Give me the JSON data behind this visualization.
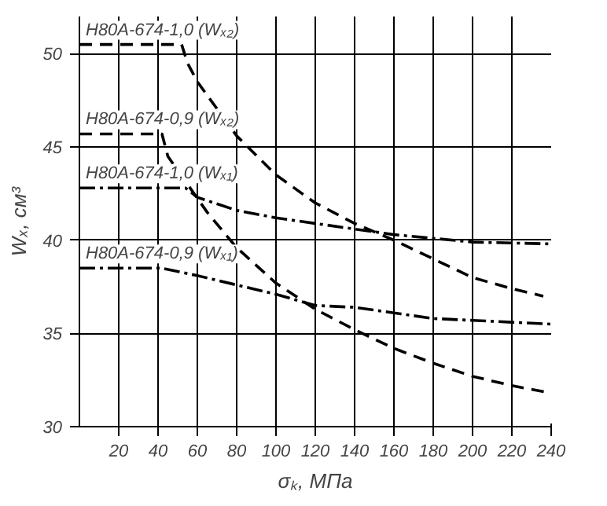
{
  "chart_data": {
    "type": "line",
    "xlabel": "σₖ, МПа",
    "ylabel": "Wₓ, см³",
    "xlim": [
      0,
      240
    ],
    "ylim": [
      30,
      52
    ],
    "xticks": [
      20,
      40,
      60,
      80,
      100,
      120,
      140,
      160,
      180,
      200,
      220,
      240
    ],
    "yticks": [
      30,
      35,
      40,
      45,
      50
    ],
    "grid": true,
    "legend": false,
    "marker": "none",
    "series": [
      {
        "name": "Н80А-674-1,0 (Wₓ₂)",
        "color": "#000000",
        "line_style": "dashed",
        "x": [
          0,
          52,
          55,
          60,
          80,
          100,
          120,
          140,
          160,
          180,
          200,
          220,
          236
        ],
        "values": [
          50.5,
          50.5,
          49.5,
          48.5,
          45.6,
          43.5,
          42,
          40.9,
          40,
          39,
          38,
          37.4,
          37
        ]
      },
      {
        "name": "Н80А-674-0,9 (Wₓ₂)",
        "color": "#000000",
        "line_style": "dashed",
        "x": [
          0,
          42,
          45,
          55,
          65,
          80,
          100,
          120,
          140,
          160,
          180,
          200,
          220,
          240
        ],
        "values": [
          45.7,
          45.7,
          44.5,
          43,
          41.5,
          39.6,
          37.7,
          36.3,
          35.2,
          34.2,
          33.4,
          32.7,
          32.2,
          31.8
        ]
      },
      {
        "name": "Н80А-674-1,0 (Wₓ₁)",
        "color": "#000000",
        "line_style": "dashdot",
        "x": [
          0,
          54,
          60,
          80,
          100,
          120,
          140,
          160,
          180,
          200,
          240
        ],
        "values": [
          42.8,
          42.8,
          42.3,
          41.6,
          41.2,
          40.9,
          40.6,
          40.3,
          40.1,
          39.9,
          39.8
        ]
      },
      {
        "name": "Н80А-674-0,9 (Wₓ₁)",
        "color": "#000000",
        "line_style": "dashdot",
        "x": [
          0,
          42,
          60,
          80,
          100,
          120,
          140,
          160,
          180,
          200,
          220,
          240
        ],
        "values": [
          38.5,
          38.5,
          38.1,
          37.6,
          37.1,
          36.5,
          36.4,
          36.1,
          35.8,
          35.7,
          35.6,
          35.5
        ]
      }
    ]
  }
}
